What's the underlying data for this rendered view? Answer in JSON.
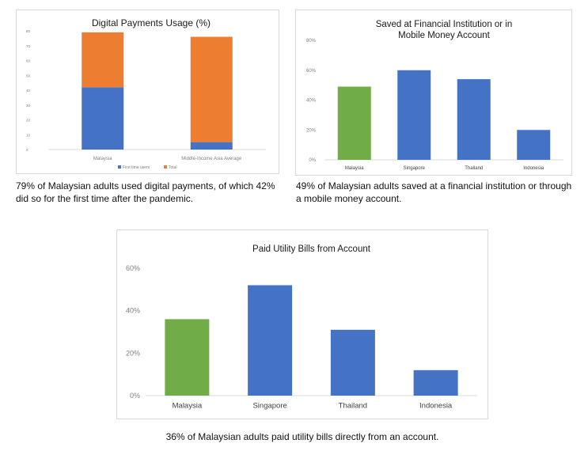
{
  "colors": {
    "blue": "#4472C4",
    "orange": "#ED7D31",
    "green": "#70AD47",
    "axis_text": "#7f7f7f",
    "title_text": "#1a1a1a"
  },
  "captions": {
    "digital": "79% of Malaysian adults used digital payments, of which 42% did so for the first time after the pandemic.",
    "saved": "49% of Malaysian adults saved at a financial institution or through a mobile money account.",
    "utility": "36% of Malaysian adults paid utility bills directly from an account."
  },
  "chart_data": [
    {
      "type": "bar",
      "stacked": true,
      "title": "Digital Payments Usage (%)",
      "categories": [
        "Malaysia",
        "Middle-Income Asia Average"
      ],
      "series": [
        {
          "name": "First time users",
          "values": [
            42,
            5
          ],
          "color": "#4472C4"
        },
        {
          "name": "Total",
          "values": [
            37,
            71
          ],
          "color": "#ED7D31"
        }
      ],
      "ylim": [
        0,
        80
      ],
      "yticks": [
        "0",
        "10",
        "20",
        "30",
        "40",
        "50",
        "60",
        "70",
        "80"
      ],
      "legend": "bottom",
      "grid": false
    },
    {
      "type": "bar",
      "title": "Saved at Financial Institution or in Mobile Money Account",
      "title_lines": [
        "Saved at Financial Institution or in",
        "Mobile Money Account"
      ],
      "categories": [
        "Malaysia",
        "Singapore",
        "Thailand",
        "Indonesia"
      ],
      "values": [
        49,
        60,
        54,
        20
      ],
      "colors": [
        "#70AD47",
        "#4472C4",
        "#4472C4",
        "#4472C4"
      ],
      "ylim": [
        0,
        80
      ],
      "yticks": [
        "0%",
        "20%",
        "40%",
        "60%",
        "80%"
      ],
      "grid": false
    },
    {
      "type": "bar",
      "title": "Paid Utility Bills from Account",
      "categories": [
        "Malaysia",
        "Singapore",
        "Thailand",
        "Indonesia"
      ],
      "values": [
        36,
        52,
        31,
        12
      ],
      "colors": [
        "#70AD47",
        "#4472C4",
        "#4472C4",
        "#4472C4"
      ],
      "ylim": [
        0,
        60
      ],
      "yticks": [
        "0%",
        "20%",
        "40%",
        "60%"
      ],
      "grid": false
    }
  ]
}
